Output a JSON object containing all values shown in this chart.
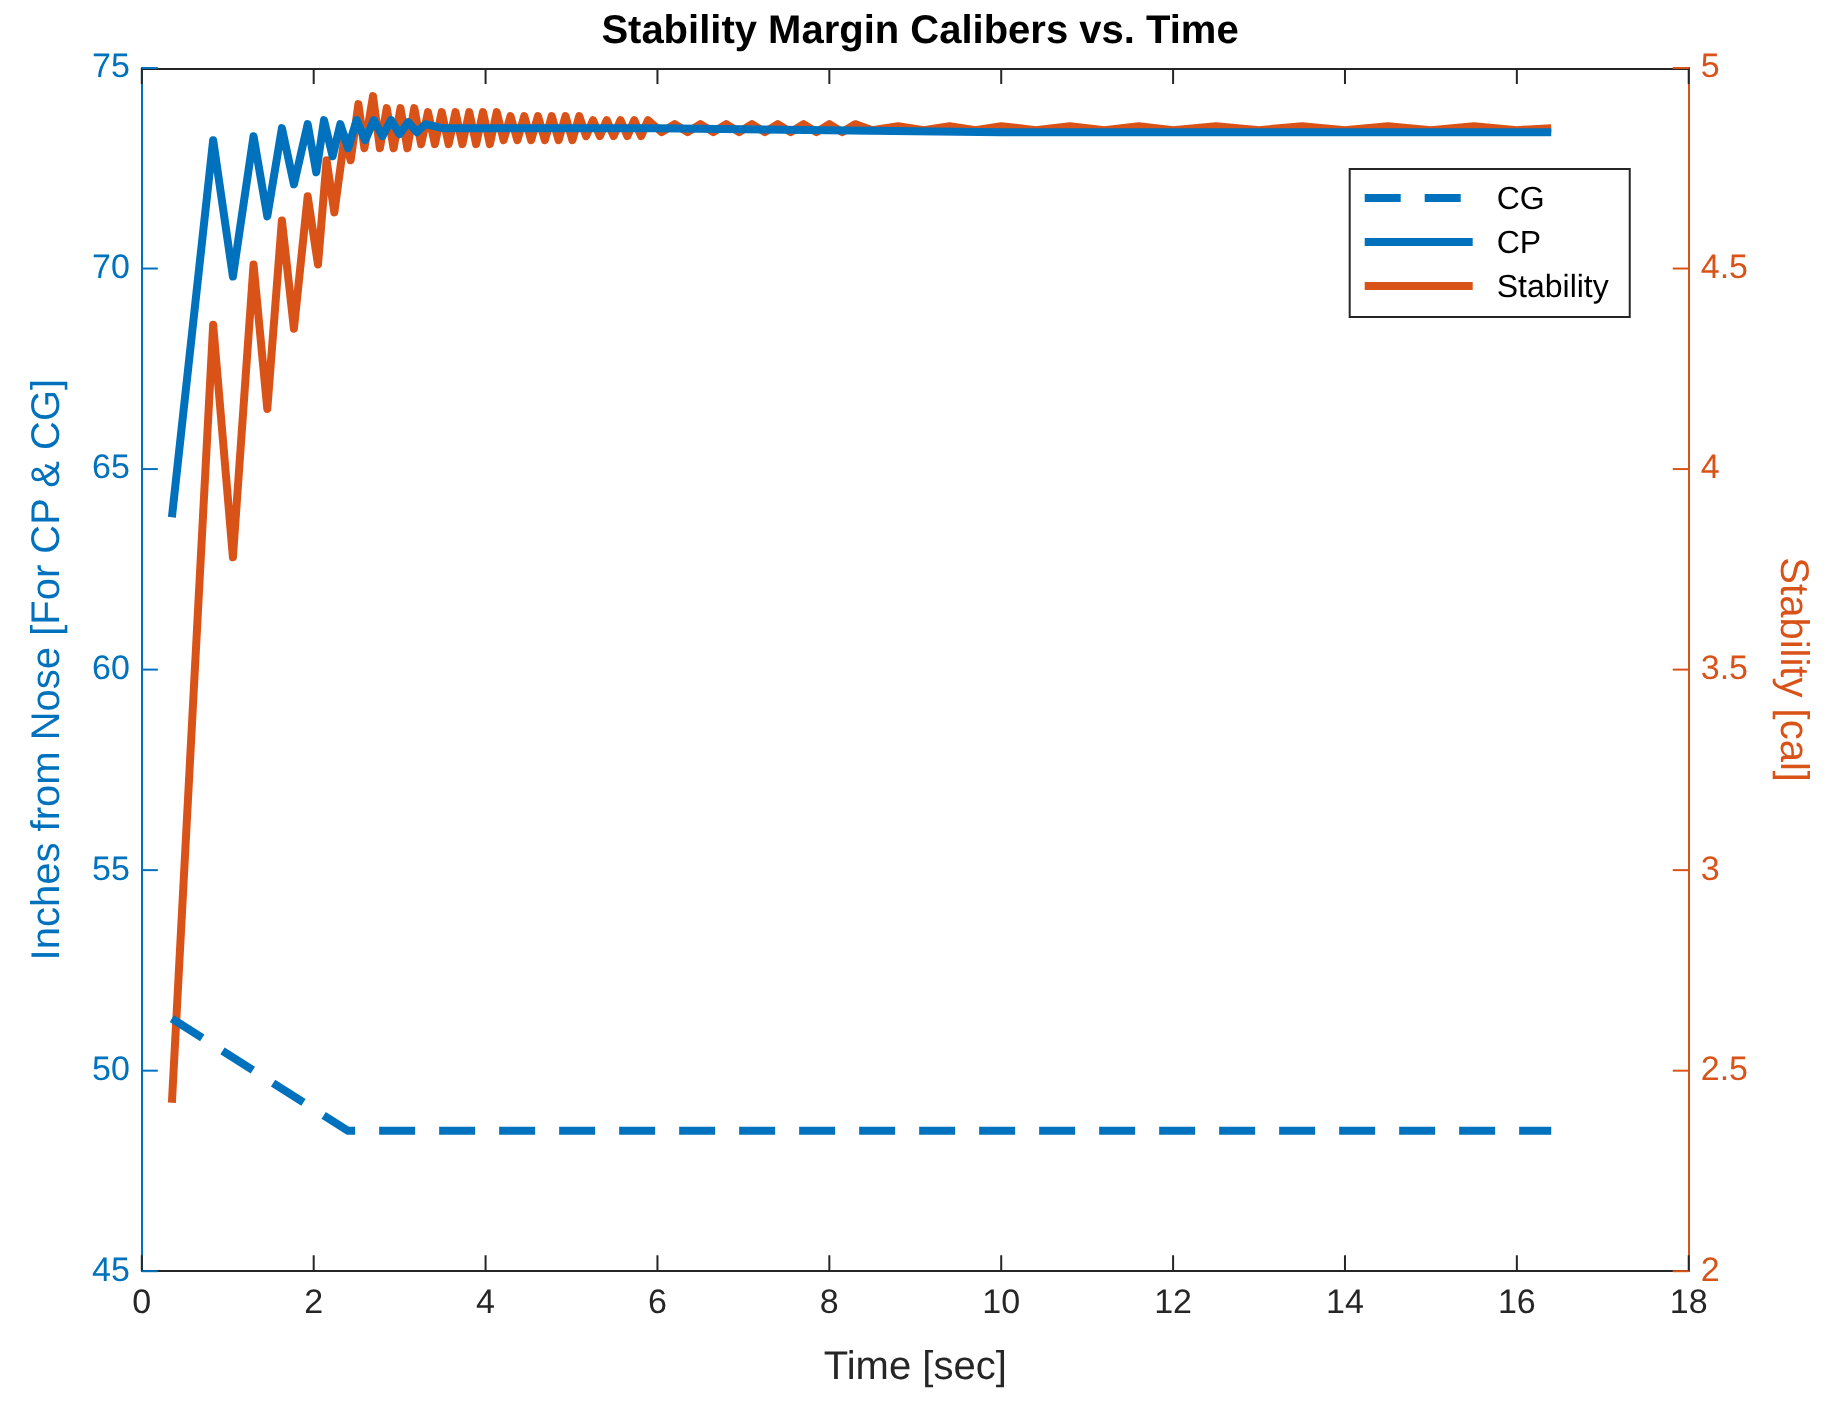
{
  "chart_data": {
    "type": "line",
    "title": "Stability Margin Calibers vs. Time",
    "xlabel": "Time [sec]",
    "ylabel": "Inches from Nose [For CP & CG]",
    "y2label": "Stability [cal]",
    "xlim": [
      0,
      18
    ],
    "xticks": [
      0,
      2,
      4,
      6,
      8,
      10,
      12,
      14,
      16,
      18
    ],
    "ylim": [
      45,
      75
    ],
    "yticks": [
      45,
      50,
      55,
      60,
      65,
      70,
      75
    ],
    "y2lim": [
      2,
      5
    ],
    "y2ticks": [
      2,
      2.5,
      3,
      3.5,
      4,
      4.5,
      5
    ],
    "grid": false,
    "legend": "top right",
    "marker": "none",
    "series": [
      {
        "name": "CG",
        "color": "#0072bd",
        "line_style": "dashed",
        "x": [
          0.35,
          2.4,
          16.4
        ],
        "values": [
          51.3,
          48.5,
          48.5
        ]
      },
      {
        "name": "CP",
        "color": "#0072bd",
        "line_style": "solid",
        "x": [
          0.35,
          0.83,
          1.06,
          1.3,
          1.46,
          1.63,
          1.77,
          1.93,
          2.03,
          2.12,
          2.22,
          2.31,
          2.4,
          2.5,
          2.6,
          2.7,
          2.8,
          2.9,
          3.0,
          3.1,
          3.2,
          3.3,
          3.5,
          4,
          6,
          10,
          16.4
        ],
        "values": [
          63.8,
          73.2,
          69.8,
          73.3,
          71.3,
          73.5,
          72.1,
          73.6,
          72.4,
          73.7,
          72.8,
          73.6,
          73.0,
          73.7,
          73.2,
          73.7,
          73.3,
          73.7,
          73.35,
          73.65,
          73.4,
          73.6,
          73.5,
          73.5,
          73.5,
          73.4,
          73.4
        ]
      },
      {
        "name": "Stability",
        "color": "#d95319",
        "line_style": "solid",
        "axis": "y2",
        "x": [
          0.35,
          0.83,
          1.06,
          1.3,
          1.46,
          1.63,
          1.77,
          1.93,
          2.05,
          2.15,
          2.24,
          2.36,
          2.43,
          2.52,
          2.59,
          2.69,
          2.77,
          2.85,
          2.93,
          3.01,
          3.09,
          3.17,
          3.25,
          3.33,
          3.41,
          3.49,
          3.57,
          3.65,
          3.73,
          3.81,
          3.89,
          3.97,
          4.05,
          4.13,
          4.21,
          4.29,
          4.37,
          4.45,
          4.53,
          4.61,
          4.69,
          4.77,
          4.85,
          4.93,
          5.01,
          5.09,
          5.17,
          5.25,
          5.33,
          5.41,
          5.49,
          5.57,
          5.65,
          5.73,
          5.81,
          5.89,
          6.05,
          6.2,
          6.35,
          6.5,
          6.65,
          6.8,
          6.95,
          7.1,
          7.25,
          7.4,
          7.55,
          7.7,
          7.85,
          8.0,
          8.15,
          8.3,
          8.5,
          8.8,
          9.1,
          9.4,
          9.7,
          10.0,
          10.4,
          10.8,
          11.2,
          11.6,
          12.0,
          12.5,
          13.0,
          13.5,
          14.0,
          14.5,
          15.0,
          15.5,
          16.0,
          16.4
        ],
        "values": [
          2.42,
          4.36,
          3.78,
          4.51,
          4.15,
          4.62,
          4.35,
          4.68,
          4.51,
          4.77,
          4.64,
          4.83,
          4.77,
          4.91,
          4.8,
          4.93,
          4.8,
          4.9,
          4.8,
          4.9,
          4.8,
          4.9,
          4.81,
          4.89,
          4.81,
          4.89,
          4.81,
          4.89,
          4.81,
          4.89,
          4.81,
          4.89,
          4.81,
          4.89,
          4.82,
          4.88,
          4.82,
          4.88,
          4.82,
          4.88,
          4.82,
          4.88,
          4.82,
          4.88,
          4.82,
          4.88,
          4.83,
          4.87,
          4.83,
          4.87,
          4.83,
          4.87,
          4.83,
          4.87,
          4.83,
          4.87,
          4.84,
          4.86,
          4.84,
          4.86,
          4.84,
          4.86,
          4.84,
          4.86,
          4.84,
          4.86,
          4.84,
          4.86,
          4.84,
          4.86,
          4.84,
          4.86,
          4.845,
          4.855,
          4.845,
          4.855,
          4.845,
          4.855,
          4.845,
          4.855,
          4.845,
          4.855,
          4.845,
          4.855,
          4.845,
          4.855,
          4.845,
          4.855,
          4.845,
          4.855,
          4.845,
          4.85
        ]
      }
    ]
  }
}
